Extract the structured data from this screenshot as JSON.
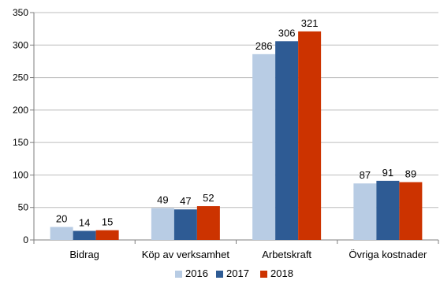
{
  "chart_data": {
    "type": "bar",
    "categories": [
      "Bidrag",
      "Köp av verksamhet",
      "Arbetskraft",
      "Övriga kostnader"
    ],
    "series": [
      {
        "name": "2016",
        "values": [
          20,
          49,
          286,
          87
        ],
        "color": "#b8cce4"
      },
      {
        "name": "2017",
        "values": [
          14,
          47,
          306,
          91
        ],
        "color": "#2e5b94"
      },
      {
        "name": "2018",
        "values": [
          15,
          52,
          321,
          89
        ],
        "color": "#cc3300"
      }
    ],
    "ylim": [
      0,
      350
    ],
    "yticks": [
      "0",
      "50",
      "100",
      "150",
      "200",
      "250",
      "300",
      "350"
    ],
    "grid": true,
    "legend": "bottom",
    "data_labels": true
  }
}
